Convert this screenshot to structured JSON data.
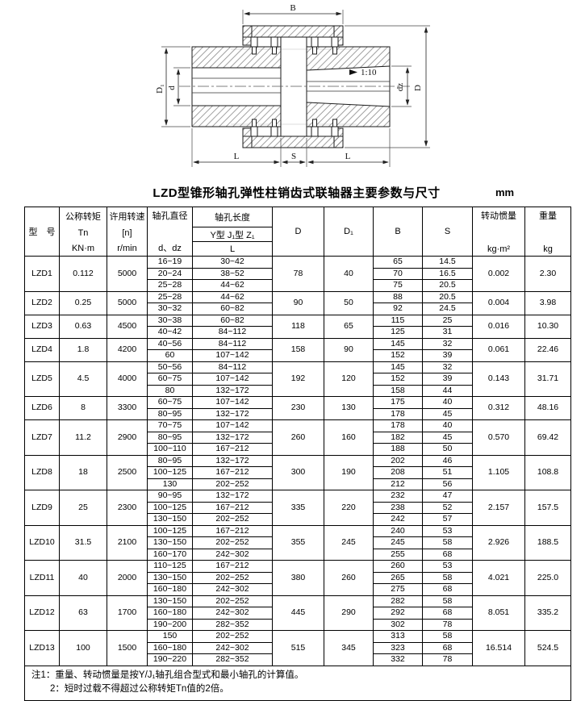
{
  "title": "LZD型锥形轴孔弹性柱销齿式联轴器主要参数与尺寸",
  "unit": "mm",
  "diagram": {
    "labels": {
      "B": "B",
      "D1": "D₁",
      "d": "d",
      "dz": "dz",
      "D": "D",
      "L_left": "L",
      "S": "S",
      "L_right": "L",
      "taper": "1:10"
    }
  },
  "table": {
    "header": {
      "model": "型　号",
      "torque": [
        "公称转矩",
        "Tn",
        "KN·m"
      ],
      "speed": [
        "许用转速",
        "[n]",
        "r/min"
      ],
      "bore_dia": [
        "轴孔直径",
        "d、dz"
      ],
      "bore_len_title": "轴孔长度",
      "bore_len_types": "Y型 J₁型 Z₁",
      "bore_len_L": "L",
      "D": "D",
      "D1": "D₁",
      "B": "B",
      "S": "S",
      "inertia": [
        "转动惯量",
        "kg·m²"
      ],
      "weight": [
        "重量",
        "kg"
      ]
    },
    "rows": [
      {
        "model": "LZD1",
        "torque": "0.112",
        "speed": "5000",
        "D": "78",
        "D1": "40",
        "inertia": "0.002",
        "weight": "2.30",
        "sub": [
          {
            "d": "16~19",
            "L": "30~42",
            "B": "65",
            "S": "14.5"
          },
          {
            "d": "20~24",
            "L": "38~52",
            "B": "70",
            "S": "16.5"
          },
          {
            "d": "25~28",
            "L": "44~62",
            "B": "75",
            "S": "20.5"
          }
        ]
      },
      {
        "model": "LZD2",
        "torque": "0.25",
        "speed": "5000",
        "D": "90",
        "D1": "50",
        "inertia": "0.004",
        "weight": "3.98",
        "sub": [
          {
            "d": "25~28",
            "L": "44~62",
            "B": "88",
            "S": "20.5"
          },
          {
            "d": "30~32",
            "L": "60~82",
            "B": "92",
            "S": "24.5"
          }
        ]
      },
      {
        "model": "LZD3",
        "torque": "0.63",
        "speed": "4500",
        "D": "118",
        "D1": "65",
        "inertia": "0.016",
        "weight": "10.30",
        "sub": [
          {
            "d": "30~38",
            "L": "60~82",
            "B": "115",
            "S": "25"
          },
          {
            "d": "40~42",
            "L": "84~112",
            "B": "125",
            "S": "31"
          }
        ]
      },
      {
        "model": "LZD4",
        "torque": "1.8",
        "speed": "4200",
        "D": "158",
        "D1": "90",
        "inertia": "0.061",
        "weight": "22.46",
        "sub": [
          {
            "d": "40~56",
            "L": "84~112",
            "B": "145",
            "S": "32"
          },
          {
            "d": "60",
            "L": "107~142",
            "B": "152",
            "S": "39"
          }
        ]
      },
      {
        "model": "LZD5",
        "torque": "4.5",
        "speed": "4000",
        "D": "192",
        "D1": "120",
        "inertia": "0.143",
        "weight": "31.71",
        "sub": [
          {
            "d": "50~56",
            "L": "84~112",
            "B": "145",
            "S": "32"
          },
          {
            "d": "60~75",
            "L": "107~142",
            "B": "152",
            "S": "39"
          },
          {
            "d": "80",
            "L": "132~172",
            "B": "158",
            "S": "44"
          }
        ]
      },
      {
        "model": "LZD6",
        "torque": "8",
        "speed": "3300",
        "D": "230",
        "D1": "130",
        "inertia": "0.312",
        "weight": "48.16",
        "sub": [
          {
            "d": "60~75",
            "L": "107~142",
            "B": "175",
            "S": "40"
          },
          {
            "d": "80~95",
            "L": "132~172",
            "B": "178",
            "S": "45"
          }
        ]
      },
      {
        "model": "LZD7",
        "torque": "11.2",
        "speed": "2900",
        "D": "260",
        "D1": "160",
        "inertia": "0.570",
        "weight": "69.42",
        "sub": [
          {
            "d": "70~75",
            "L": "107~142",
            "B": "178",
            "S": "40"
          },
          {
            "d": "80~95",
            "L": "132~172",
            "B": "182",
            "S": "45"
          },
          {
            "d": "100~110",
            "L": "167~212",
            "B": "188",
            "S": "50"
          }
        ]
      },
      {
        "model": "LZD8",
        "torque": "18",
        "speed": "2500",
        "D": "300",
        "D1": "190",
        "inertia": "1.105",
        "weight": "108.8",
        "sub": [
          {
            "d": "80~95",
            "L": "132~172",
            "B": "202",
            "S": "46"
          },
          {
            "d": "100~125",
            "L": "167~212",
            "B": "208",
            "S": "51"
          },
          {
            "d": "130",
            "L": "202~252",
            "B": "212",
            "S": "56"
          }
        ]
      },
      {
        "model": "LZD9",
        "torque": "25",
        "speed": "2300",
        "D": "335",
        "D1": "220",
        "inertia": "2.157",
        "weight": "157.5",
        "sub": [
          {
            "d": "90~95",
            "L": "132~172",
            "B": "232",
            "S": "47"
          },
          {
            "d": "100~125",
            "L": "167~212",
            "B": "238",
            "S": "52"
          },
          {
            "d": "130~150",
            "L": "202~252",
            "B": "242",
            "S": "57"
          }
        ]
      },
      {
        "model": "LZD10",
        "torque": "31.5",
        "speed": "2100",
        "D": "355",
        "D1": "245",
        "inertia": "2.926",
        "weight": "188.5",
        "sub": [
          {
            "d": "100~125",
            "L": "167~212",
            "B": "240",
            "S": "53"
          },
          {
            "d": "130~150",
            "L": "202~252",
            "B": "245",
            "S": "58"
          },
          {
            "d": "160~170",
            "L": "242~302",
            "B": "255",
            "S": "68"
          }
        ]
      },
      {
        "model": "LZD11",
        "torque": "40",
        "speed": "2000",
        "D": "380",
        "D1": "260",
        "inertia": "4.021",
        "weight": "225.0",
        "sub": [
          {
            "d": "110~125",
            "L": "167~212",
            "B": "260",
            "S": "53"
          },
          {
            "d": "130~150",
            "L": "202~252",
            "B": "265",
            "S": "58"
          },
          {
            "d": "160~180",
            "L": "242~302",
            "B": "275",
            "S": "68"
          }
        ]
      },
      {
        "model": "LZD12",
        "torque": "63",
        "speed": "1700",
        "D": "445",
        "D1": "290",
        "inertia": "8.051",
        "weight": "335.2",
        "sub": [
          {
            "d": "130~150",
            "L": "202~252",
            "B": "282",
            "S": "58"
          },
          {
            "d": "160~180",
            "L": "242~302",
            "B": "292",
            "S": "68"
          },
          {
            "d": "190~200",
            "L": "282~352",
            "B": "302",
            "S": "78"
          }
        ]
      },
      {
        "model": "LZD13",
        "torque": "100",
        "speed": "1500",
        "D": "515",
        "D1": "345",
        "inertia": "16.514",
        "weight": "524.5",
        "sub": [
          {
            "d": "150",
            "L": "202~252",
            "B": "313",
            "S": "58"
          },
          {
            "d": "160~180",
            "L": "242~302",
            "B": "323",
            "S": "68"
          },
          {
            "d": "190~220",
            "L": "282~352",
            "B": "332",
            "S": "78"
          }
        ]
      }
    ],
    "notes": [
      "注1：重量、转动惯量是按Y/J₁轴孔组合型式和最小轴孔的计算值。",
      "2：短时过载不得超过公称转矩Tn值的2倍。"
    ]
  }
}
